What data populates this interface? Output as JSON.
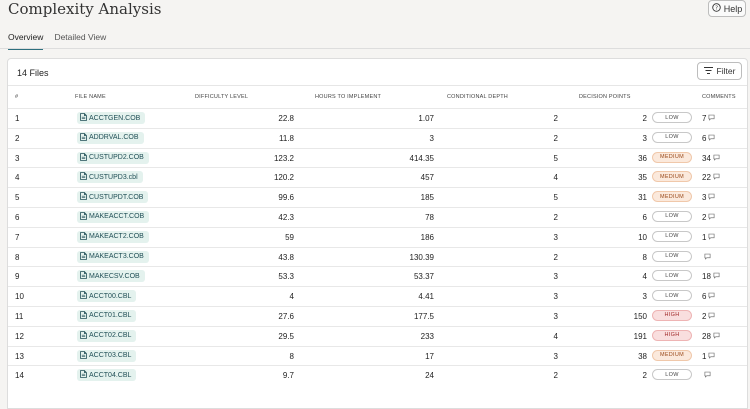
{
  "page": {
    "title": "Complexity Analysis",
    "help_label": "Help"
  },
  "tabs": [
    {
      "label": "Overview",
      "active": true
    },
    {
      "label": "Detailed View",
      "active": false
    }
  ],
  "summary": {
    "count_label": "14 Files",
    "filter_label": "Filter"
  },
  "table": {
    "headers": {
      "index": "#",
      "file": "FILE NAME",
      "difficulty": "DIFFICULTY LEVEL",
      "hours": "HOURS TO IMPLEMENT",
      "depth": "CONDITIONAL DEPTH",
      "decisions": "DECISION POINTS",
      "comments": "COMMENTS"
    },
    "rows": [
      {
        "index": "1",
        "file": "ACCTGEN.COB",
        "difficulty": "22.8",
        "hours": "1.07",
        "depth": "2",
        "decisions": "2",
        "level": "LOW",
        "comments": "7"
      },
      {
        "index": "2",
        "file": "ADDRVAL.COB",
        "difficulty": "11.8",
        "hours": "3",
        "depth": "2",
        "decisions": "3",
        "level": "LOW",
        "comments": "6"
      },
      {
        "index": "3",
        "file": "CUSTUPD2.COB",
        "difficulty": "123.2",
        "hours": "414.35",
        "depth": "5",
        "decisions": "36",
        "level": "MEDIUM",
        "comments": "34"
      },
      {
        "index": "4",
        "file": "CUSTUPD3.cbl",
        "difficulty": "120.2",
        "hours": "457",
        "depth": "4",
        "decisions": "35",
        "level": "MEDIUM",
        "comments": "22"
      },
      {
        "index": "5",
        "file": "CUSTUPDT.COB",
        "difficulty": "99.6",
        "hours": "185",
        "depth": "5",
        "decisions": "31",
        "level": "MEDIUM",
        "comments": "3"
      },
      {
        "index": "6",
        "file": "MAKEACCT.COB",
        "difficulty": "42.3",
        "hours": "78",
        "depth": "2",
        "decisions": "6",
        "level": "LOW",
        "comments": "2"
      },
      {
        "index": "7",
        "file": "MAKEACT2.COB",
        "difficulty": "59",
        "hours": "186",
        "depth": "3",
        "decisions": "10",
        "level": "LOW",
        "comments": "1"
      },
      {
        "index": "8",
        "file": "MAKEACT3.COB",
        "difficulty": "43.8",
        "hours": "130.39",
        "depth": "2",
        "decisions": "8",
        "level": "LOW",
        "comments": ""
      },
      {
        "index": "9",
        "file": "MAKECSV.COB",
        "difficulty": "53.3",
        "hours": "53.37",
        "depth": "3",
        "decisions": "4",
        "level": "LOW",
        "comments": "18"
      },
      {
        "index": "10",
        "file": "ACCT00.CBL",
        "difficulty": "4",
        "hours": "4.41",
        "depth": "3",
        "decisions": "3",
        "level": "LOW",
        "comments": "6"
      },
      {
        "index": "11",
        "file": "ACCT01.CBL",
        "difficulty": "27.6",
        "hours": "177.5",
        "depth": "3",
        "decisions": "150",
        "level": "HIGH",
        "comments": "2"
      },
      {
        "index": "12",
        "file": "ACCT02.CBL",
        "difficulty": "29.5",
        "hours": "233",
        "depth": "4",
        "decisions": "191",
        "level": "HIGH",
        "comments": "28"
      },
      {
        "index": "13",
        "file": "ACCT03.CBL",
        "difficulty": "8",
        "hours": "17",
        "depth": "3",
        "decisions": "38",
        "level": "MEDIUM",
        "comments": "1"
      },
      {
        "index": "14",
        "file": "ACCT04.CBL",
        "difficulty": "9.7",
        "hours": "24",
        "depth": "2",
        "decisions": "2",
        "level": "LOW",
        "comments": ""
      }
    ]
  },
  "colors": {
    "accent": "#2e6f7e",
    "chip_bg": "#e4f2ee",
    "medium": "#fbe9dc",
    "high": "#f9dede"
  },
  "icons": {
    "help": "help-circle-icon",
    "filter": "filter-lines-icon",
    "file": "file-icon",
    "comment": "comment-bubble-icon"
  }
}
